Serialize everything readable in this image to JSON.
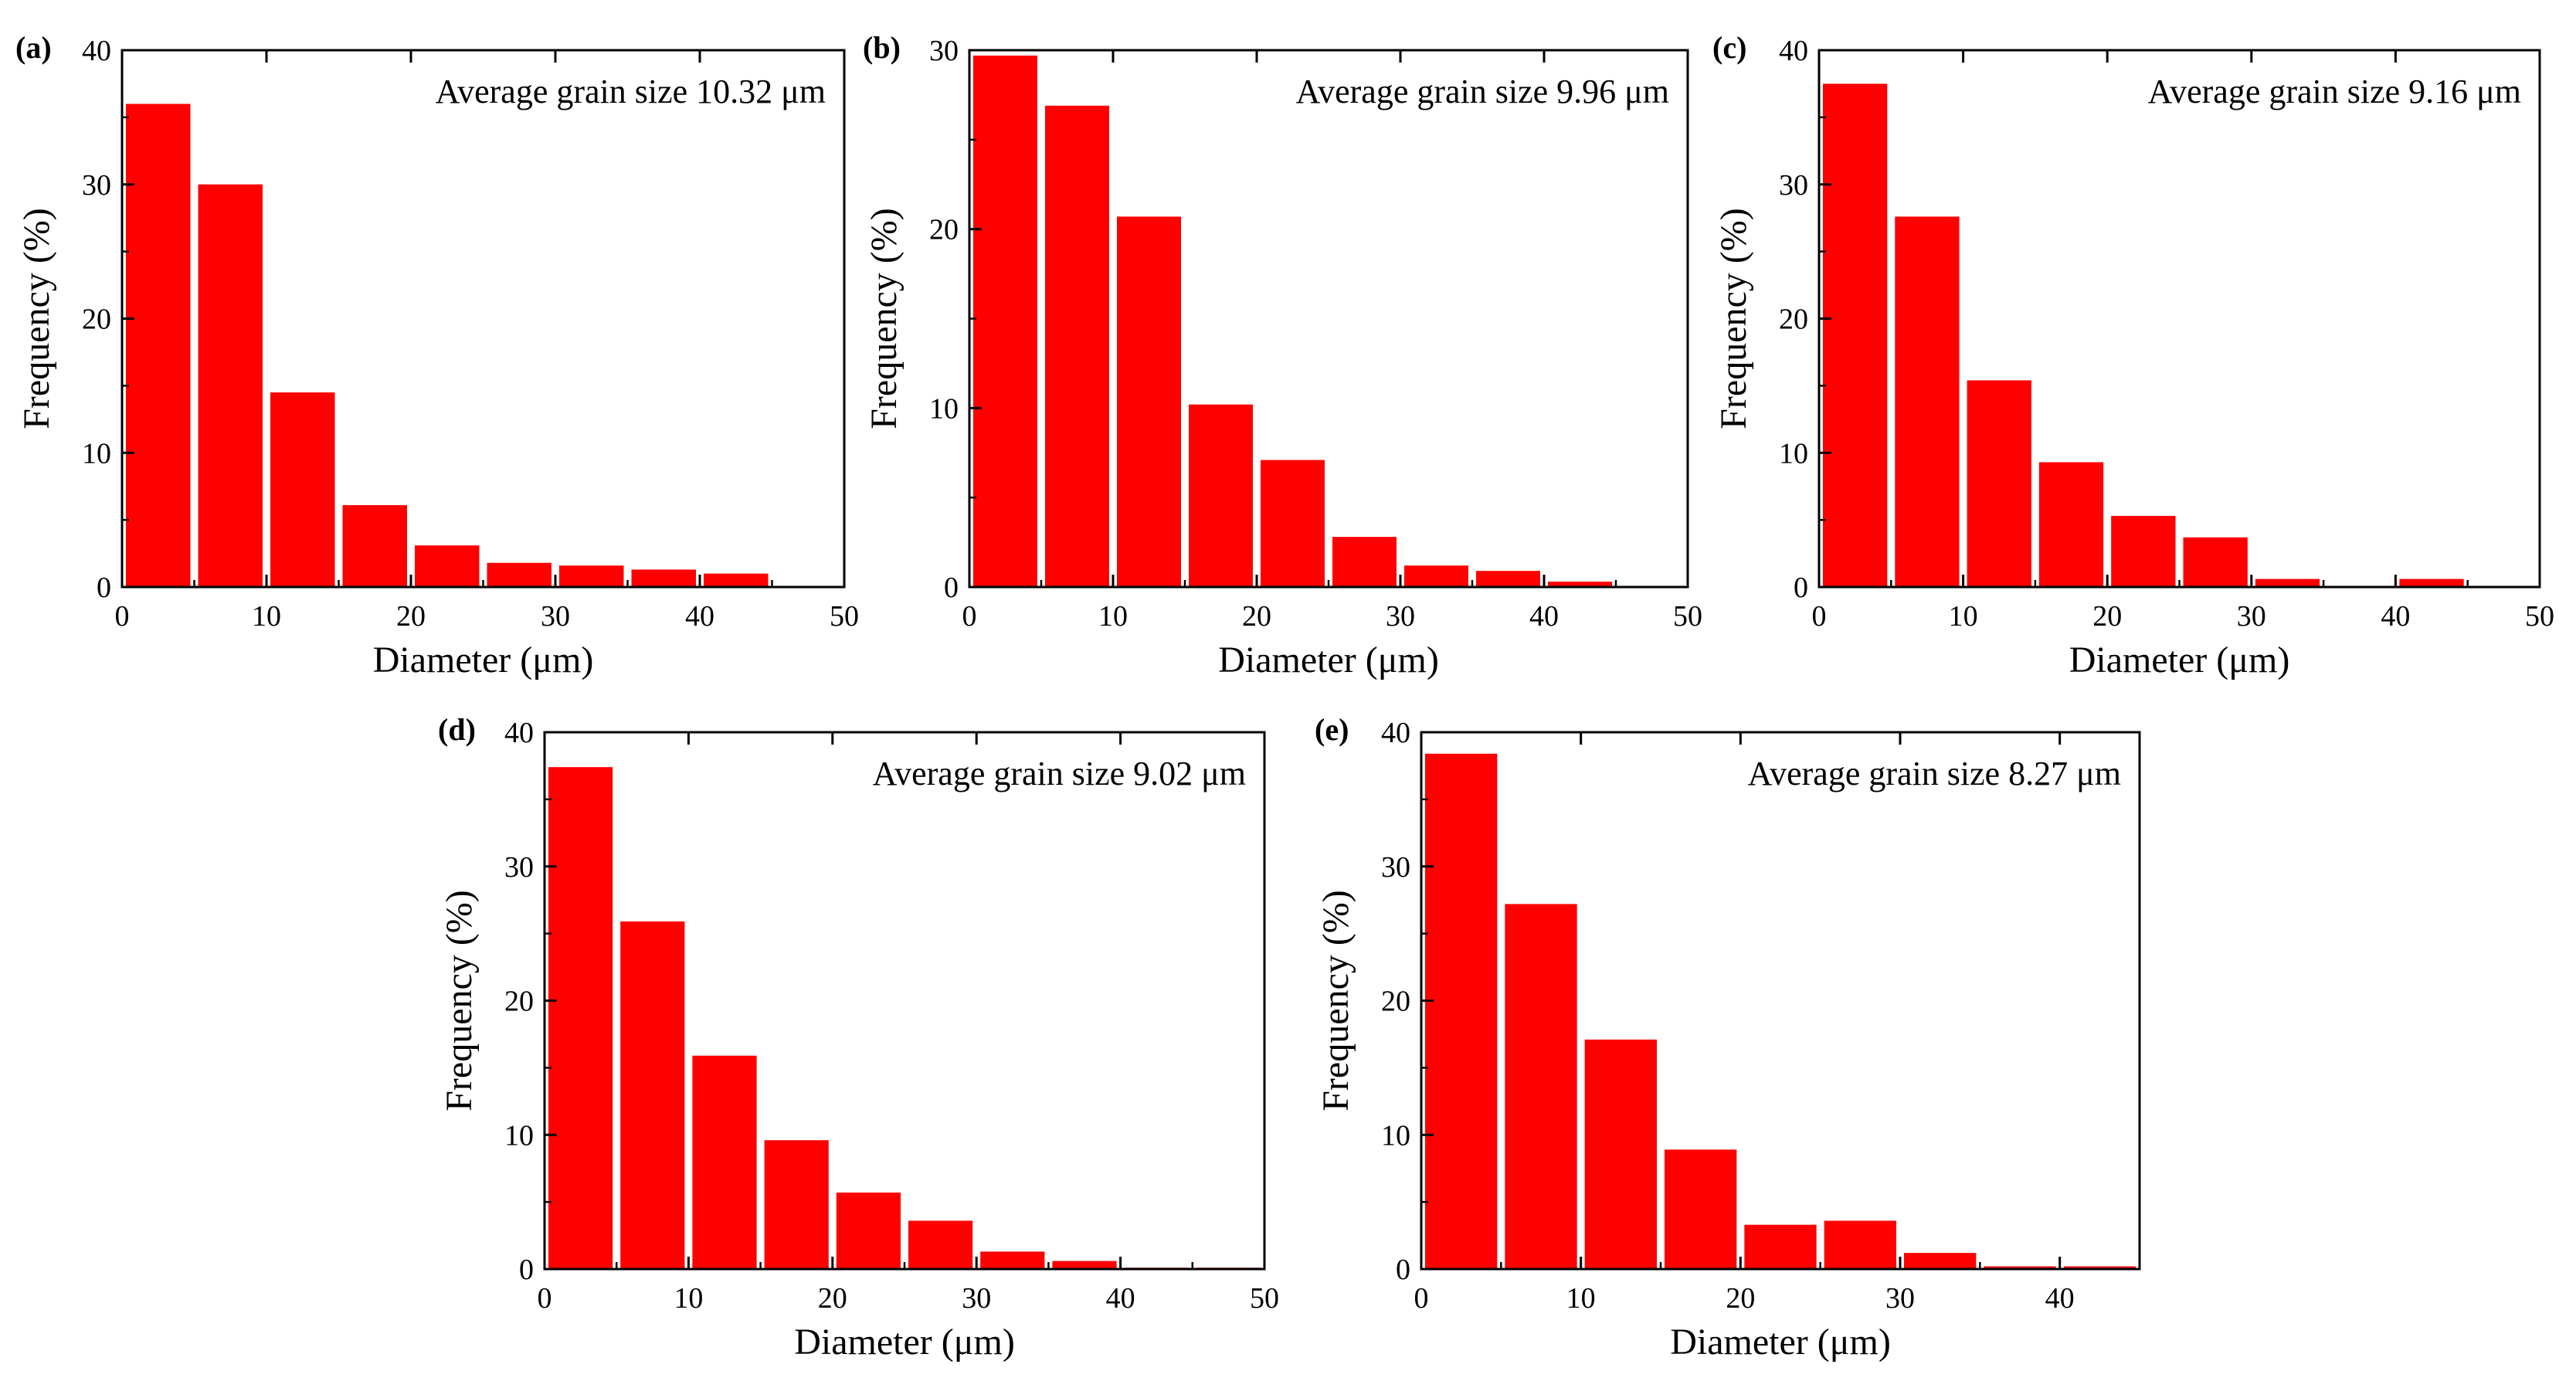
{
  "figure": {
    "bar_color": "#ff0000",
    "axis_color": "#000000",
    "background": "#ffffff"
  },
  "chart_data": [
    {
      "type": "bar",
      "panel_label": "(a)",
      "annotation": "Average grain size 10.32 μm",
      "xlabel": "Diameter (μm)",
      "ylabel": "Frequency (%)",
      "xlim": [
        0,
        50
      ],
      "ylim": [
        0,
        40
      ],
      "xticks": [
        0,
        10,
        20,
        30,
        40,
        50
      ],
      "yticks": [
        0,
        10,
        20,
        30,
        40
      ],
      "bin_width": 5,
      "bin_starts": [
        0,
        5,
        10,
        15,
        20,
        25,
        30,
        35,
        40
      ],
      "values": [
        36.0,
        30.0,
        14.5,
        6.1,
        3.1,
        1.8,
        1.6,
        1.3,
        1.0
      ]
    },
    {
      "type": "bar",
      "panel_label": "(b)",
      "annotation": "Average grain size 9.96 μm",
      "xlabel": "Diameter (μm)",
      "ylabel": "Frequency (%)",
      "xlim": [
        0,
        50
      ],
      "ylim": [
        0,
        30
      ],
      "xticks": [
        0,
        10,
        20,
        30,
        40,
        50
      ],
      "yticks": [
        0,
        10,
        20,
        30
      ],
      "bin_width": 5,
      "bin_starts": [
        0,
        5,
        10,
        15,
        20,
        25,
        30,
        35,
        40
      ],
      "values": [
        29.7,
        26.9,
        20.7,
        10.2,
        7.1,
        2.8,
        1.2,
        0.9,
        0.3
      ]
    },
    {
      "type": "bar",
      "panel_label": "(c)",
      "annotation": "Average grain size 9.16 μm",
      "xlabel": "Diameter (μm)",
      "ylabel": "Frequency (%)",
      "xlim": [
        0,
        50
      ],
      "ylim": [
        0,
        40
      ],
      "xticks": [
        0,
        10,
        20,
        30,
        40,
        50
      ],
      "yticks": [
        0,
        10,
        20,
        30,
        40
      ],
      "bin_width": 5,
      "bin_starts": [
        0,
        5,
        10,
        15,
        20,
        25,
        30,
        35,
        40
      ],
      "values": [
        37.5,
        27.6,
        15.4,
        9.3,
        5.3,
        3.7,
        0.6,
        0,
        0.6
      ]
    },
    {
      "type": "bar",
      "panel_label": "(d)",
      "annotation": "Average grain size 9.02 μm",
      "xlabel": "Diameter (μm)",
      "ylabel": "Frequency (%)",
      "xlim": [
        0,
        50
      ],
      "ylim": [
        0,
        40
      ],
      "xticks": [
        0,
        10,
        20,
        30,
        40,
        50
      ],
      "yticks": [
        0,
        10,
        20,
        30,
        40
      ],
      "bin_width": 5,
      "bin_starts": [
        0,
        5,
        10,
        15,
        20,
        25,
        30,
        35,
        40,
        45
      ],
      "values": [
        37.4,
        25.9,
        15.9,
        9.6,
        5.7,
        3.6,
        1.3,
        0.6,
        0.1,
        0.1
      ]
    },
    {
      "type": "bar",
      "panel_label": "(e)",
      "annotation": "Average grain size 8.27 μm",
      "xlabel": "Diameter (μm)",
      "ylabel": "Frequency (%)",
      "xlim": [
        0,
        45
      ],
      "ylim": [
        0,
        40
      ],
      "xticks": [
        0,
        10,
        20,
        30,
        40
      ],
      "yticks": [
        0,
        10,
        20,
        30,
        40
      ],
      "bin_width": 5,
      "bin_starts": [
        0,
        5,
        10,
        15,
        20,
        25,
        30,
        35,
        40
      ],
      "values": [
        38.4,
        27.2,
        17.1,
        8.9,
        3.3,
        3.6,
        1.2,
        0.2,
        0.2
      ]
    }
  ]
}
